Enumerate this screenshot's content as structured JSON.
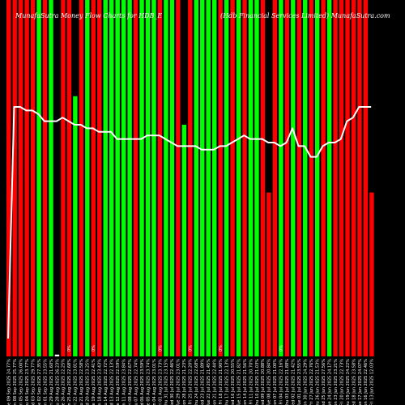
{
  "chart_data": {
    "type": "bar",
    "title_left": "MunafaSutra Money Flow Charts for HDB_E",
    "title_right": "(Hdb Financial Services Limited) MunafaSutra.com",
    "colors": {
      "background": "#000000",
      "up": "#00ff00",
      "down": "#ff0000",
      "line": "#ffffff",
      "neutral": "#ffffff"
    },
    "ylim": [
      0,
      100
    ],
    "bars": [
      {
        "label": "Tue 09 Sep 2025 24.77%",
        "value": 100,
        "color": "red",
        "note": ""
      },
      {
        "label": "Mon 08 Sep 2025 25.77%",
        "value": 100,
        "color": "red",
        "note": ""
      },
      {
        "label": "Fri 05 Sep 2025 26.00%",
        "value": 100,
        "color": "red",
        "note": ""
      },
      {
        "label": "Thu 04 Sep 2025 23.77%",
        "value": 100,
        "color": "red",
        "note": ""
      },
      {
        "label": "Wed 03 Sep 2025 29.77%",
        "value": 100,
        "color": "red",
        "note": ""
      },
      {
        "label": "Tue 02 Sep 2025 27.35%",
        "value": 100,
        "color": "green",
        "note": ""
      },
      {
        "label": "Mon 01 Sep 2025 23.55%",
        "value": 100,
        "color": "red",
        "note": ""
      },
      {
        "label": "Fri 29 Aug 2025 21.60%",
        "value": 100,
        "color": "green",
        "note": ""
      },
      {
        "label": "Thu 28 Aug 2025 26.23%",
        "value": 0.5,
        "color": "white",
        "note": ""
      },
      {
        "label": "Tue 26 Aug 2025 22.25%",
        "value": 100,
        "color": "red",
        "note": ""
      },
      {
        "label": "Mon 25 Aug 2025 22.68%",
        "value": 100,
        "color": "red",
        "note": "0%"
      },
      {
        "label": "Fri 22 Aug 2025 23.81%",
        "value": 73,
        "color": "green",
        "note": ""
      },
      {
        "label": "Thu 21 Aug 2025 22.58%",
        "value": 100,
        "color": "red",
        "note": ""
      },
      {
        "label": "Wed 20 Aug 2025 23.25%",
        "value": 100,
        "color": "green",
        "note": ""
      },
      {
        "label": "Tue 19 Aug 2025 22.41%",
        "value": 100,
        "color": "red",
        "note": "0%"
      },
      {
        "label": "Mon 18 Aug 2025 23.43%",
        "value": 100,
        "color": "red",
        "note": ""
      },
      {
        "label": "Thu 14 Aug 2025 22.72%",
        "value": 100,
        "color": "green",
        "note": ""
      },
      {
        "label": "Wed 13 Aug 2025 22.13%",
        "value": 100,
        "color": "green",
        "note": ""
      },
      {
        "label": "Tue 12 Aug 2025 22.59%",
        "value": 100,
        "color": "green",
        "note": ""
      },
      {
        "label": "Mon 11 Aug 2025 23.84%",
        "value": 100,
        "color": "green",
        "note": ""
      },
      {
        "label": "Fri 08 Aug 2025 22.67%",
        "value": 100,
        "color": "green",
        "note": ""
      },
      {
        "label": "Thu 07 Aug 2025 22.74%",
        "value": 100,
        "color": "red",
        "note": ""
      },
      {
        "label": "Wed 06 Aug 2025 23.59%",
        "value": 100,
        "color": "green",
        "note": ""
      },
      {
        "label": "Tue 05 Aug 2025 23.74%",
        "value": 100,
        "color": "green",
        "note": ""
      },
      {
        "label": "Mon 04 Aug 2025 23.01%",
        "value": 100,
        "color": "green",
        "note": ""
      },
      {
        "label": "Fri 01 Aug 2025 23.73%",
        "value": 100,
        "color": "red",
        "note": "0%"
      },
      {
        "label": "Thu 31 Jul 2025 23.15%",
        "value": 100,
        "color": "green",
        "note": ""
      },
      {
        "label": "Wed 30 Jul 2025 22.46%",
        "value": 100,
        "color": "green",
        "note": ""
      },
      {
        "label": "Tue 29 Jul 2025 23.01%",
        "value": 100,
        "color": "red",
        "note": ""
      },
      {
        "label": "Mon 28 Jul 2025 21.23%",
        "value": 65,
        "color": "green",
        "note": ""
      },
      {
        "label": "Fri 25 Jul 2025 22.20%",
        "value": 100,
        "color": "red",
        "note": "0%"
      },
      {
        "label": "Thu 24 Jul 2025 22.68%",
        "value": 100,
        "color": "green",
        "note": ""
      },
      {
        "label": "Wed 23 Jul 2025 21.89%",
        "value": 100,
        "color": "green",
        "note": ""
      },
      {
        "label": "Tue 22 Jul 2025 21.45%",
        "value": 100,
        "color": "green",
        "note": ""
      },
      {
        "label": "Mon 21 Jul 2025 22.44%",
        "value": 100,
        "color": "green",
        "note": ""
      },
      {
        "label": "Fri 18 Jul 2025 21.90%",
        "value": 100,
        "color": "red",
        "note": "0%"
      },
      {
        "label": "Thu 17 Jul 2025 22.13%",
        "value": 100,
        "color": "green",
        "note": ""
      },
      {
        "label": "Wed 16 Jul 2025 20.55%",
        "value": 100,
        "color": "red",
        "note": ""
      },
      {
        "label": "Tue 15 Jul 2025 21.82%",
        "value": 100,
        "color": "green",
        "note": ""
      },
      {
        "label": "Mon 14 Jul 2025 21.56%",
        "value": 100,
        "color": "red",
        "note": ""
      },
      {
        "label": "Fri 11 Jul 2025 20.70%",
        "value": 100,
        "color": "green",
        "note": ""
      },
      {
        "label": "Thu 10 Jul 2025 21.03%",
        "value": 100,
        "color": "green",
        "note": ""
      },
      {
        "label": "Wed 09 Jul 2025 20.88%",
        "value": 100,
        "color": "red",
        "note": ""
      },
      {
        "label": "Tue 08 Jul 2025 20.84%",
        "value": 46,
        "color": "red",
        "note": ""
      },
      {
        "label": "Mon 07 Jul 2025 21.00%",
        "value": 100,
        "color": "red",
        "note": ""
      },
      {
        "label": "Fri 04 Jul 2025 22.16%",
        "value": 100,
        "color": "green",
        "note": "0%"
      },
      {
        "label": "Thu 03 Jul 2025 21.88%",
        "value": 100,
        "color": "red",
        "note": ""
      },
      {
        "label": "Wed 02 Jul 2025 21.42%",
        "value": 100,
        "color": "green",
        "note": ""
      },
      {
        "label": "Tue 01 Jul 2025 23.55%",
        "value": 100,
        "color": "red",
        "note": ""
      },
      {
        "label": "Mon 30 Jun 2025 24.29%",
        "value": 100,
        "color": "green",
        "note": ""
      },
      {
        "label": "Fri 27 Jun 2025 22.76%",
        "value": 100,
        "color": "red",
        "note": ""
      },
      {
        "label": "Thu 26 Jun 2025 21.53%",
        "value": 100,
        "color": "green",
        "note": ""
      },
      {
        "label": "Wed 25 Jun 2025 27.56%",
        "value": 100,
        "color": "red",
        "note": ""
      },
      {
        "label": "Tue 24 Jun 2025 24.17%",
        "value": 100,
        "color": "green",
        "note": ""
      },
      {
        "label": "Mon 23 Jun 2025 23.21%",
        "value": 100,
        "color": "red",
        "note": ""
      },
      {
        "label": "Fri 20 Jun 2025 22.73%",
        "value": 100,
        "color": "red",
        "note": ""
      },
      {
        "label": "Thu 19 Jun 2025 24.22%",
        "value": 100,
        "color": "red",
        "note": ""
      },
      {
        "label": "Wed 18 Jun 2025 23.58%",
        "value": 100,
        "color": "red",
        "note": ""
      },
      {
        "label": "Tue 17 Jun 2025 24.07%",
        "value": 100,
        "color": "red",
        "note": ""
      },
      {
        "label": "Mon 16 Jun 2025 22.46%",
        "value": 100,
        "color": "red",
        "note": ""
      },
      {
        "label": "Fri 13 Jun 2025 12.03%",
        "value": 46,
        "color": "red",
        "note": ""
      }
    ],
    "line": {
      "values": [
        5,
        70,
        70,
        69,
        69,
        68,
        66,
        66,
        66,
        67,
        66,
        65,
        65,
        64,
        64,
        63,
        63,
        63,
        61,
        61,
        61,
        61,
        61,
        62,
        62,
        62,
        61,
        60,
        59,
        59,
        59,
        59,
        58,
        58,
        58,
        59,
        59,
        60,
        61,
        62,
        61,
        61,
        61,
        60,
        60,
        59,
        60,
        64,
        59,
        59,
        56,
        56,
        59,
        60,
        60,
        61,
        66,
        67,
        70,
        70,
        70
      ]
    }
  }
}
